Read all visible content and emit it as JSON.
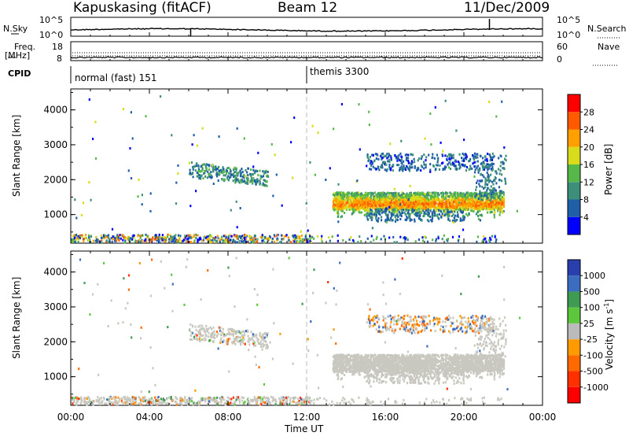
{
  "header": {
    "station": "Kapuskasing (fitACF)",
    "beam": "Beam 12",
    "date": "11/Dec/2009"
  },
  "top_panels": {
    "nsky_label": "N.Sky",
    "nsearch_label": "N.Search",
    "nsky_ticks": [
      "10^5",
      "10^0"
    ],
    "nsearch_ticks": [
      "10^5",
      "10^0"
    ],
    "freq_label_line1": "Freq.",
    "freq_label_line2": "[MHz]",
    "freq_ticks": [
      "18",
      "8"
    ],
    "nave_label": "Nave",
    "nave_ticks": [
      "60",
      "0"
    ],
    "cpid_label": "CPID",
    "cpid_segments": [
      "normal (fast) 151",
      "themis 3300"
    ]
  },
  "chart_data": [
    {
      "type": "heatmap",
      "title": "",
      "xlabel": "Time UT",
      "ylabel": "Slant Range [km]",
      "x_ticks": [
        "00:00",
        "04:00",
        "08:00",
        "12:00",
        "16:00",
        "20:00",
        "00:00"
      ],
      "x_range_hours": [
        0,
        24
      ],
      "y_ticks": [
        1000,
        2000,
        3000,
        4000
      ],
      "ylim": [
        180,
        4600
      ],
      "colorbar": {
        "label": "Power [dB]",
        "ticks": [
          4,
          8,
          12,
          16,
          20,
          24,
          28
        ],
        "range": [
          0,
          32
        ],
        "colors": [
          "#0000ff",
          "#1f5fa8",
          "#3d8f7a",
          "#57b84a",
          "#d8dc1a",
          "#ff9f00",
          "#ff5a00",
          "#ff0000"
        ]
      },
      "features": [
        {
          "name": "near-range scatter",
          "t_start": 0,
          "t_end": 12,
          "range_km": [
            200,
            400
          ]
        },
        {
          "name": "morning echo band",
          "t_start": 6,
          "t_end": 10,
          "range_km": [
            2000,
            2600
          ],
          "power_db": 10
        },
        {
          "name": "main echo band",
          "t_start": 13.3,
          "t_end": 22,
          "range_km": [
            1100,
            1600
          ],
          "power_db": 18
        },
        {
          "name": "upper echo band",
          "t_start": 15,
          "t_end": 21,
          "range_km": [
            2300,
            2700
          ],
          "power_db": 8
        }
      ]
    },
    {
      "type": "heatmap",
      "title": "",
      "xlabel": "Time UT",
      "ylabel": "Slant Range [km]",
      "x_ticks": [
        "00:00",
        "04:00",
        "08:00",
        "12:00",
        "16:00",
        "20:00",
        "00:00"
      ],
      "x_range_hours": [
        0,
        24
      ],
      "y_ticks": [
        1000,
        2000,
        3000,
        4000
      ],
      "ylim": [
        180,
        4600
      ],
      "colorbar": {
        "label": "Velocity [m s",
        "label_sup": "-1",
        "label_end": "]",
        "ticks": [
          "1000",
          "500",
          "100",
          "25",
          "-25",
          "-100",
          "-500",
          "-1000"
        ],
        "colors": [
          "#2a3fae",
          "#3a6cc0",
          "#3f9a52",
          "#5cc63c",
          "#bbbbbb",
          "#ff9a00",
          "#ff6a00",
          "#ff3000",
          "#ff0000"
        ]
      },
      "features": [
        {
          "name": "ground scatter morning",
          "t_start": 6,
          "t_end": 10,
          "range_km": [
            2000,
            2600
          ],
          "velocity": 0
        },
        {
          "name": "ground scatter main",
          "t_start": 13.3,
          "t_end": 22,
          "range_km": [
            1100,
            1600
          ],
          "velocity": 0
        },
        {
          "name": "upper echo band",
          "t_start": 15,
          "t_end": 21,
          "range_km": [
            2300,
            2700
          ],
          "velocity": -100
        }
      ]
    }
  ]
}
